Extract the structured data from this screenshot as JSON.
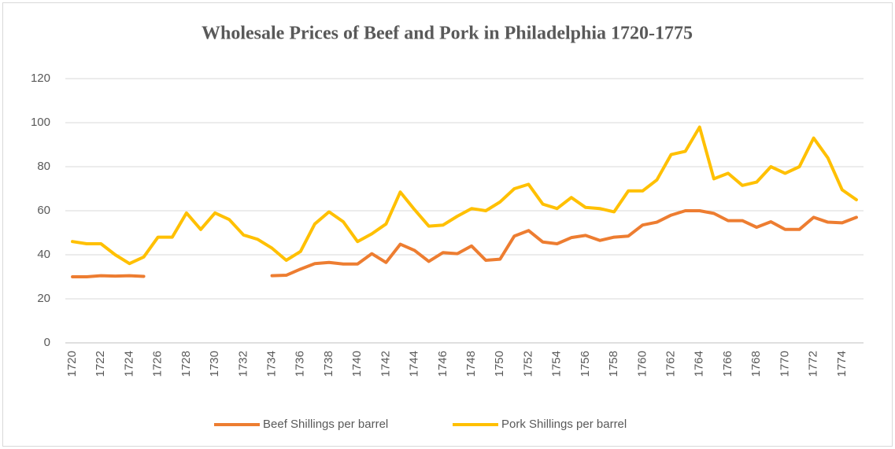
{
  "chart_data": {
    "type": "line",
    "title": "Wholesale Prices of Beef and Pork in Philadelphia 1720-1775",
    "categories": [
      "1720",
      null,
      "1722",
      null,
      "1724",
      null,
      "1726",
      null,
      "1728",
      null,
      "1730",
      null,
      "1732",
      null,
      "1734",
      null,
      "1736",
      null,
      "1738",
      null,
      "1740",
      null,
      "1742",
      null,
      "1744",
      null,
      "1746",
      null,
      "1748",
      null,
      "1750",
      null,
      "1752",
      null,
      "1754",
      null,
      "1756",
      null,
      "1758",
      null,
      "1760",
      null,
      "1762",
      null,
      "1764",
      null,
      "1766",
      null,
      "1768",
      null,
      "1770",
      null,
      "1772",
      null,
      "1774",
      null
    ],
    "series": [
      {
        "name": "Beef Shillings per barrel",
        "color": "#ED7D31",
        "values": [
          30,
          30,
          30.5,
          30.3,
          30.5,
          30.2,
          null,
          null,
          null,
          null,
          null,
          null,
          null,
          null,
          30.5,
          30.7,
          33.5,
          36,
          36.5,
          35.8,
          35.8,
          40.5,
          36.5,
          44.8,
          42,
          37,
          41,
          40.5,
          44,
          37.5,
          38,
          48.5,
          51,
          45.8,
          45,
          47.8,
          48.8,
          46.5,
          48,
          48.5,
          53.5,
          54.8,
          58,
          60,
          60,
          58.8,
          55.5,
          55.5,
          52.5,
          55,
          51.5,
          51.5,
          57,
          54.8,
          54.5,
          57
        ]
      },
      {
        "name": "Pork Shillings per barrel",
        "color": "#FFC000",
        "values": [
          46,
          45,
          45,
          40,
          36,
          39,
          48,
          48,
          59,
          51.5,
          59,
          56,
          49,
          47,
          43,
          37.5,
          41.5,
          54,
          59.5,
          55,
          46,
          49.5,
          54,
          68.5,
          60.5,
          53,
          53.5,
          57.5,
          61,
          60,
          64,
          70,
          72,
          63,
          61,
          66,
          61.5,
          61,
          59.5,
          69,
          69,
          74,
          85.5,
          87,
          98,
          74.5,
          77,
          71.5,
          73,
          80,
          77,
          80,
          93,
          84,
          69.5,
          65
        ]
      }
    ],
    "ylim": [
      0,
      120
    ],
    "yticks": [
      0,
      20,
      40,
      60,
      80,
      100,
      120
    ],
    "grid": true,
    "legend": "bottom"
  }
}
